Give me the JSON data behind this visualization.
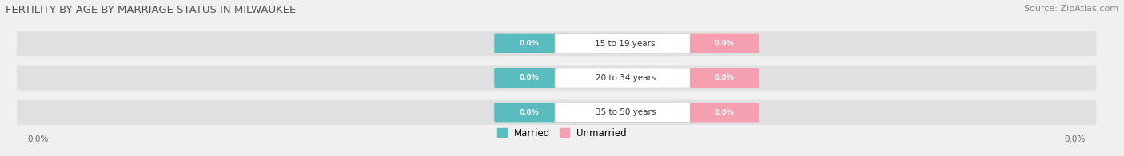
{
  "title": "FERTILITY BY AGE BY MARRIAGE STATUS IN MILWAUKEE",
  "source": "Source: ZipAtlas.com",
  "categories": [
    "15 to 19 years",
    "20 to 34 years",
    "35 to 50 years"
  ],
  "married_values": [
    0.0,
    0.0,
    0.0
  ],
  "unmarried_values": [
    0.0,
    0.0,
    0.0
  ],
  "married_color": "#5bbcbf",
  "unmarried_color": "#f4a0b0",
  "bar_bg_color": "#e0e0e0",
  "title_fontsize": 9.5,
  "source_fontsize": 8,
  "axis_label_left": "0.0%",
  "axis_label_right": "0.0%",
  "legend_married": "Married",
  "legend_unmarried": "Unmarried"
}
